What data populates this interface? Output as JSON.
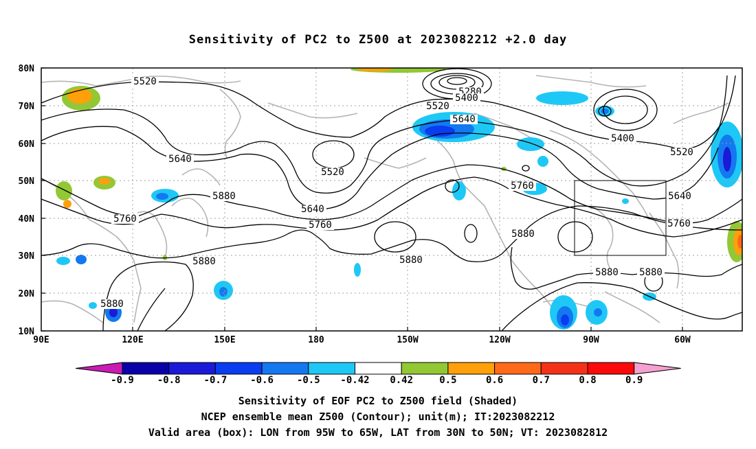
{
  "title": "Sensitivity of PC2 to Z500 at 2023082212 +2.0 day",
  "lat_labels": [
    "80N",
    "70N",
    "60N",
    "50N",
    "40N",
    "30N",
    "20N",
    "10N"
  ],
  "lon_labels": [
    "90E",
    "120E",
    "150E",
    "180",
    "150W",
    "120W",
    "90W",
    "60W"
  ],
  "contour_labels": [
    "5520",
    "5640",
    "5760",
    "5880",
    "5280",
    "5400",
    "5520",
    "5640",
    "5520",
    "5640",
    "5760",
    "5880",
    "5880",
    "5760",
    "5880",
    "5400",
    "5520",
    "5640",
    "5760",
    "5880",
    "5880",
    "5880"
  ],
  "colorbar": {
    "labels": [
      "-0.9",
      "-0.8",
      "-0.7",
      "-0.6",
      "-0.5",
      "-0.42",
      "0.42",
      "0.5",
      "0.6",
      "0.7",
      "0.8",
      "0.9"
    ],
    "colors": [
      "#c81cb4",
      "#0a00a8",
      "#1a1ad8",
      "#0a3cf0",
      "#1478f0",
      "#1ec8f6",
      "#ffffff",
      "#92c834",
      "#fea00a",
      "#ff6a1a",
      "#f43218",
      "#fa0a0a",
      "#f4a0d0"
    ]
  },
  "valid_box": {
    "lon_min": -95,
    "lon_max": -65,
    "lat_min": 30,
    "lat_max": 50
  },
  "captions": [
    "Sensitivity of EOF PC2 to Z500 field (Shaded)",
    "NCEP ensemble mean Z500 (Contour); unit(m); IT:2023082212",
    "Valid area (box): LON from 95W to 65W, LAT from 30N to 50N; VT: 2023082812"
  ]
}
